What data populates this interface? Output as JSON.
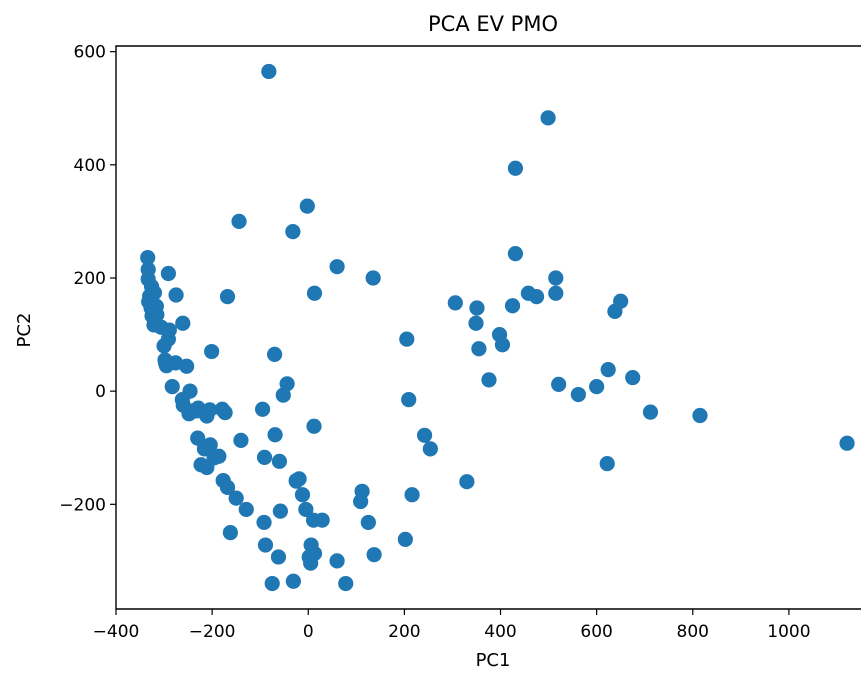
{
  "chart_data": {
    "type": "scatter",
    "title": "PCA EV PMO",
    "xlabel": "PC1",
    "ylabel": "PC2",
    "xlim": [
      -400,
      1150
    ],
    "ylim": [
      -385,
      610
    ],
    "xticks": [
      -400,
      -200,
      0,
      200,
      400,
      600,
      800,
      1000
    ],
    "yticks": [
      -200,
      0,
      200,
      400,
      600
    ],
    "xtick_labels": [
      "−400",
      "−200",
      "0",
      "200",
      "400",
      "600",
      "800",
      "1000"
    ],
    "ytick_labels": [
      "−200",
      "0",
      "200",
      "400",
      "600"
    ],
    "grid": false,
    "marker_color": "#1f77b4",
    "series": [
      {
        "x": [
          -82,
          499,
          431,
          -2,
          -32,
          -144,
          431,
          60,
          135,
          515,
          -334,
          -333,
          -333,
          -291,
          -326,
          -320,
          -330,
          -275,
          -316,
          -332,
          -327,
          -326,
          -315,
          -168,
          13,
          650,
          306,
          425,
          458,
          475,
          515,
          351,
          638,
          -325,
          -306,
          -321,
          -261,
          -289,
          -291,
          -300,
          -298,
          -276,
          -201,
          -70,
          205,
          398,
          404,
          355,
          349,
          376,
          -295,
          -297,
          -283,
          -253,
          -246,
          -262,
          -260,
          -233,
          -248,
          -241,
          -229,
          -205,
          -211,
          -179,
          -173,
          -95,
          -44,
          -52,
          -69,
          521,
          562,
          600,
          624,
          675,
          712,
          815,
          1121,
          209,
          12,
          242,
          254,
          -230,
          -216,
          -204,
          -196,
          -186,
          -140,
          -91,
          -60,
          -25,
          -19,
          -211,
          -223,
          -177,
          -168,
          -150,
          -129,
          -92,
          -58,
          -12,
          -5,
          -25,
          112,
          216,
          330,
          109,
          125,
          11,
          29,
          -162,
          -89,
          -62,
          2,
          6,
          5,
          13,
          60,
          137,
          202,
          -75,
          -31,
          78,
          622
        ]
      },
      {
        "y": [
          565,
          483,
          394,
          327,
          282,
          300,
          243,
          220,
          200,
          200,
          236,
          215,
          198,
          208,
          185,
          174,
          168,
          170,
          150,
          158,
          147,
          155,
          135,
          167,
          173,
          159,
          156,
          151,
          173,
          167,
          173,
          147,
          141,
          133,
          113,
          117,
          120,
          108,
          92,
          80,
          55,
          50,
          70,
          65,
          92,
          100,
          82,
          75,
          120,
          20,
          45,
          50,
          8,
          44,
          0,
          -15,
          -25,
          -35,
          -40,
          -35,
          -30,
          -33,
          -44,
          -32,
          -38,
          -32,
          13,
          -7,
          -77,
          12,
          -6,
          8,
          38,
          24,
          -37,
          -43,
          -92,
          -15,
          -62,
          -78,
          -102,
          -83,
          -102,
          -95,
          -118,
          -115,
          -87,
          -117,
          -124,
          -159,
          -155,
          -135,
          -130,
          -158,
          -170,
          -189,
          -209,
          -232,
          -212,
          -183,
          -209,
          -158,
          -177,
          -183,
          -160,
          -195,
          -232,
          -228,
          -228,
          -250,
          -272,
          -293,
          -293,
          -272,
          -304,
          -287,
          -300,
          -289,
          -262,
          -340,
          -336,
          -340,
          -128
        ]
      }
    ]
  }
}
